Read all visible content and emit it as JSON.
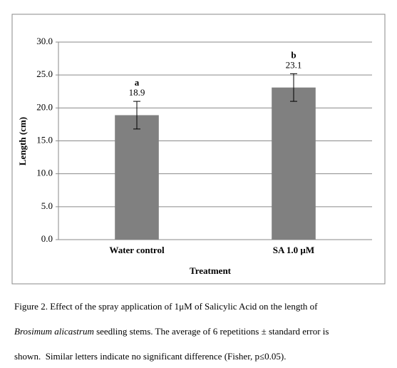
{
  "chart_data": {
    "type": "bar",
    "categories": [
      "Water control",
      "SA 1.0 µM"
    ],
    "values": [
      18.9,
      23.1
    ],
    "errors": [
      2.1,
      2.1
    ],
    "letters": [
      "a",
      "b"
    ],
    "color": "#808080",
    "ylabel": "Length (cm)",
    "xlabel": "Treatment",
    "ylim": [
      0,
      30
    ],
    "yticks": [
      {
        "value": 0,
        "label": "0.0"
      },
      {
        "value": 5,
        "label": "5.0"
      },
      {
        "value": 10,
        "label": "10.0"
      },
      {
        "value": 15,
        "label": "15.0"
      },
      {
        "value": 20,
        "label": "20.0"
      },
      {
        "value": 25,
        "label": "25.0"
      },
      {
        "value": 30,
        "label": "30.0"
      }
    ],
    "grid": true
  },
  "caption": {
    "line1": "Figure 2. Effect of the spray application of 1μM of Salicylic Acid on the length of",
    "line2_italic": "Brosimum alicastrum",
    "line2_rest": " seedling stems. The average of 6 repetitions ± standard error is",
    "line3": "shown.  Similar letters indicate no significant difference (Fisher, p≤0.05)."
  }
}
